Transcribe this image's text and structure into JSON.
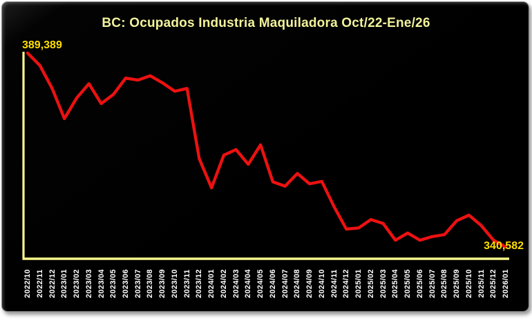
{
  "window": {
    "page_background": "#ffffff",
    "panel_background": "#000000"
  },
  "chart_data": {
    "type": "line",
    "title": "BC: Ocupados Industria Maquiladora Oct/22-Ene/26",
    "xlabel": "",
    "ylabel": "",
    "grid": false,
    "legend": "none",
    "ylim": [
      338000,
      392000
    ],
    "categories": [
      "2022/10",
      "2022/11",
      "2022/12",
      "2023/01",
      "2023/02",
      "2023/03",
      "2023/04",
      "2023/05",
      "2023/06",
      "2023/07",
      "2023/08",
      "2023/09",
      "2023/10",
      "2023/11",
      "2023/12",
      "2024/01",
      "2024/02",
      "2024/03",
      "2024/04",
      "2024/05",
      "2024/06",
      "2024/07",
      "2024/08",
      "2024/09",
      "2024/10",
      "2024/11",
      "2024/12",
      "2025/01",
      "2025/02",
      "2025/03",
      "2025/04",
      "2025/05",
      "2025/06",
      "2025/07",
      "2025/08",
      "2025/09",
      "2025/10",
      "2025/11",
      "2025/12",
      "2026/01"
    ],
    "values": [
      389389,
      386300,
      380500,
      372900,
      378100,
      381700,
      376700,
      379000,
      383100,
      382600,
      383700,
      381900,
      379800,
      380500,
      362800,
      355500,
      363700,
      365100,
      361400,
      366300,
      357000,
      355900,
      359100,
      356500,
      357100,
      350700,
      345100,
      345400,
      347500,
      346500,
      342300,
      344100,
      342300,
      343200,
      343700,
      347200,
      348600,
      346000,
      342300,
      340582
    ],
    "annotations": {
      "first_point_label": "389,389",
      "last_point_label": "340,582"
    },
    "colors": {
      "line": "#EC1111",
      "axis": "#F7F78C",
      "title": "#F2F29C",
      "value_labels": "#FFDE00",
      "tick_labels": "#FFFFFF"
    }
  }
}
